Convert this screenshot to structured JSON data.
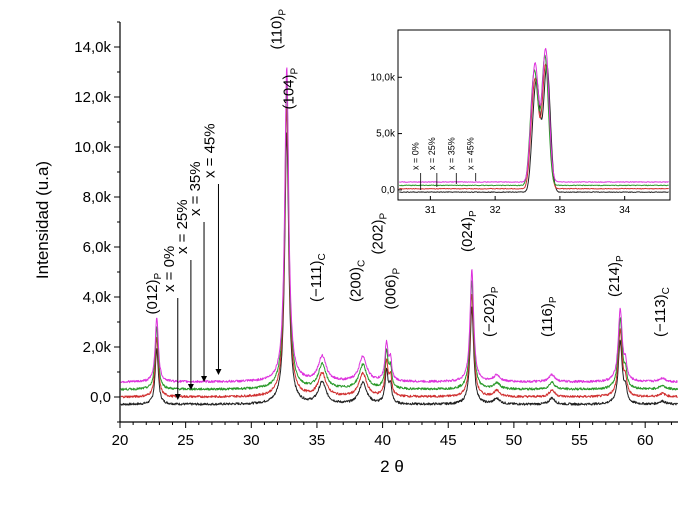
{
  "chart_data": [
    {
      "type": "line",
      "xlabel": "2 θ",
      "ylabel": "Intensidad (u.a)",
      "xlim": [
        20,
        62.5
      ],
      "ylim": [
        -1000,
        15000
      ],
      "xticks": [
        "20",
        "25",
        "30",
        "35",
        "40",
        "45",
        "50",
        "55",
        "60"
      ],
      "yticks": [
        "0,0",
        "2,0k",
        "4,0k",
        "6,0k",
        "8,0k",
        "10,0k",
        "12,0k",
        "14,0k"
      ],
      "grid": false,
      "series": [
        {
          "color": "#222222",
          "baseline": -300,
          "scale": 0.86
        },
        {
          "color": "#d03030",
          "baseline": 0,
          "scale": 0.92
        },
        {
          "color": "#2a9a2a",
          "baseline": 300,
          "scale": 0.97
        },
        {
          "color": "#dd33dd",
          "baseline": 600,
          "scale": 1.0
        }
      ],
      "peaks": [
        {
          "pos": 22.8,
          "height": 2600,
          "width": 0.14
        },
        {
          "pos": 32.7,
          "height": 12600,
          "width": 0.18
        },
        {
          "pos": 35.4,
          "height": 1000,
          "width": 0.35
        },
        {
          "pos": 38.5,
          "height": 1000,
          "width": 0.35
        },
        {
          "pos": 40.3,
          "height": 1500,
          "width": 0.14
        },
        {
          "pos": 40.6,
          "height": 800,
          "width": 0.12
        },
        {
          "pos": 46.8,
          "height": 4500,
          "width": 0.16
        },
        {
          "pos": 48.7,
          "height": 250,
          "width": 0.3
        },
        {
          "pos": 52.9,
          "height": 300,
          "width": 0.25
        },
        {
          "pos": 58.1,
          "height": 2900,
          "width": 0.18
        },
        {
          "pos": 58.5,
          "height": 600,
          "width": 0.12
        },
        {
          "pos": 61.3,
          "height": 150,
          "width": 0.3
        }
      ],
      "peak_labels": [
        {
          "text": "(012)",
          "sub": "P",
          "x": 22.8,
          "y": 3300
        },
        {
          "text": "(110)",
          "sub": "P",
          "x": 32.3,
          "y": 13900
        },
        {
          "text": "(104)",
          "sub": "P",
          "x": 33.2,
          "y": 11500
        },
        {
          "text": "(−111)",
          "sub": "C",
          "x": 35.3,
          "y": 3800
        },
        {
          "text": "(200)",
          "sub": "C",
          "x": 38.3,
          "y": 3800
        },
        {
          "text": "(202)",
          "sub": "P",
          "x": 40.0,
          "y": 5700
        },
        {
          "text": "(006)",
          "sub": "P",
          "x": 41.0,
          "y": 3500
        },
        {
          "text": "(024)",
          "sub": "P",
          "x": 46.8,
          "y": 5800
        },
        {
          "text": "(−202)",
          "sub": "P",
          "x": 48.5,
          "y": 2400
        },
        {
          "text": "(116)",
          "sub": "P",
          "x": 52.9,
          "y": 2400
        },
        {
          "text": "(214)",
          "sub": "P",
          "x": 58.0,
          "y": 4000
        },
        {
          "text": "(−113)",
          "sub": "C",
          "x": 61.5,
          "y": 2400
        }
      ],
      "composition_labels": [
        {
          "text": "x = 0%",
          "x": 24.4
        },
        {
          "text": "x = 25%",
          "x": 25.4
        },
        {
          "text": "x = 35%",
          "x": 26.4
        },
        {
          "text": "x = 45%",
          "x": 27.5
        }
      ]
    },
    {
      "type": "line",
      "inset": true,
      "xlim": [
        30.5,
        34.7
      ],
      "ylim": [
        -900,
        14200
      ],
      "xticks": [
        "31",
        "32",
        "33",
        "34"
      ],
      "yticks": [
        "0,0",
        "5,0k",
        "10,0k"
      ],
      "grid": false,
      "composition_labels": [
        {
          "text": "x = 0%",
          "x": 30.85
        },
        {
          "text": "x = 25%",
          "x": 31.1
        },
        {
          "text": "x = 35%",
          "x": 31.4
        },
        {
          "text": "x = 45%",
          "x": 31.7
        }
      ]
    }
  ]
}
